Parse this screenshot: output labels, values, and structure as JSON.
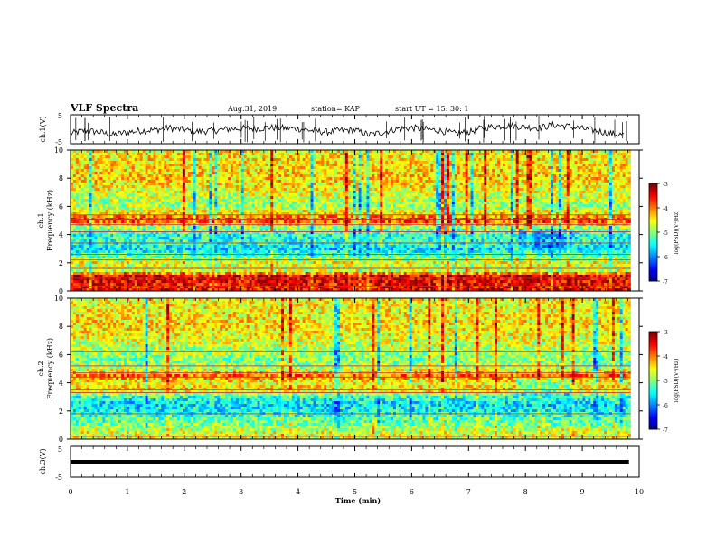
{
  "header": {
    "title": "VLF Spectra",
    "date": "Aug.31, 2019",
    "station": "station= KAP",
    "start": "start  UT =   15: 30: 1"
  },
  "panels": {
    "ch1": {
      "ylabel": "ch.1(V)",
      "ymin": -5,
      "ymax": 5,
      "ticks": [
        "5",
        "-5"
      ]
    },
    "spec1": {
      "ylabel1": "ch.1",
      "ylabel2": "Frequency  (kHz)",
      "ticks": [
        "0",
        "2",
        "4",
        "6",
        "8",
        "10"
      ]
    },
    "spec2": {
      "ylabel1": "ch.2",
      "ylabel2": "Frequency  (kHz)",
      "ticks": [
        "0",
        "2",
        "4",
        "6",
        "8",
        "10"
      ]
    },
    "ch3": {
      "ylabel": "ch.3(V)",
      "ticks": [
        "5",
        "-5"
      ]
    }
  },
  "xaxis": {
    "label": "Time  (min)",
    "ticks": [
      "0",
      "1",
      "2",
      "3",
      "4",
      "5",
      "6",
      "7",
      "8",
      "9",
      "10"
    ]
  },
  "colorbar": {
    "label": "log(PSD)(V²/Hz)",
    "ticks": [
      "-3",
      "-4",
      "-5",
      "-6",
      "-7"
    ]
  },
  "chart_data": [
    {
      "type": "line",
      "name": "ch1-waveform",
      "x_range": [
        0,
        10
      ],
      "ylim": [
        -5,
        5
      ],
      "x": [
        0,
        0.25,
        0.5,
        0.75,
        1,
        1.25,
        1.5,
        1.75,
        2,
        2.25,
        2.5,
        2.75,
        3,
        3.25,
        3.5,
        3.75,
        4,
        4.25,
        4.5,
        4.75,
        5,
        5.25,
        5.5,
        5.75,
        6,
        6.25,
        6.5,
        6.75,
        7,
        7.25,
        7.5,
        7.75,
        8,
        8.25,
        8.5,
        8.75,
        9,
        9.25,
        9.5,
        9.75
      ],
      "y": [
        -1.5,
        -0.5,
        -1.0,
        -2.0,
        -1.0,
        -0.5,
        -0.2,
        0.5,
        -0.3,
        -0.8,
        -0.5,
        0.0,
        0.3,
        0.2,
        0.6,
        0.4,
        0.2,
        -0.5,
        -1.0,
        -0.4,
        -0.3,
        -2.0,
        -1.0,
        0.2,
        0.5,
        0.0,
        -0.5,
        -1.5,
        -1.0,
        0.5,
        1.0,
        1.2,
        0.8,
        0.5,
        1.5,
        1.0,
        0.2,
        -0.5,
        -1.5,
        -2.0
      ]
    },
    {
      "type": "heatmap",
      "name": "ch1-spectrogram",
      "x_range": [
        0,
        10
      ],
      "ylim": [
        0,
        10
      ],
      "ylabel": "Frequency  (kHz)",
      "colorbar_range": [
        -7,
        -3
      ],
      "log_psd_profile_by_freq_khz": [
        {
          "f": 0.5,
          "v": -3.5
        },
        {
          "f": 1.0,
          "v": -3.3
        },
        {
          "f": 1.5,
          "v": -4.8
        },
        {
          "f": 2.0,
          "v": -4.5
        },
        {
          "f": 2.5,
          "v": -5.2
        },
        {
          "f": 3.0,
          "v": -5.6
        },
        {
          "f": 3.5,
          "v": -5.3
        },
        {
          "f": 4.0,
          "v": -5.4
        },
        {
          "f": 4.5,
          "v": -4.9
        },
        {
          "f": 5.0,
          "v": -3.6
        },
        {
          "f": 5.5,
          "v": -4.4
        },
        {
          "f": 6.0,
          "v": -4.9
        },
        {
          "f": 7.0,
          "v": -4.6
        },
        {
          "f": 8.0,
          "v": -4.3
        },
        {
          "f": 9.0,
          "v": -4.4
        },
        {
          "f": 10.0,
          "v": -4.5
        }
      ],
      "hum_lines_khz": [
        0.3,
        0.9,
        1.6,
        2.2,
        2.6,
        3.4,
        4.2,
        4.7,
        5.1,
        5.4
      ]
    },
    {
      "type": "heatmap",
      "name": "ch2-spectrogram",
      "x_range": [
        0,
        10
      ],
      "ylim": [
        0,
        10
      ],
      "ylabel": "Frequency  (kHz)",
      "colorbar_range": [
        -7,
        -3
      ],
      "log_psd_profile_by_freq_khz": [
        {
          "f": 0.5,
          "v": -4.6
        },
        {
          "f": 1.0,
          "v": -5.0
        },
        {
          "f": 1.5,
          "v": -5.2
        },
        {
          "f": 2.0,
          "v": -5.5
        },
        {
          "f": 2.5,
          "v": -5.6
        },
        {
          "f": 3.0,
          "v": -5.3
        },
        {
          "f": 3.5,
          "v": -4.3
        },
        {
          "f": 4.0,
          "v": -4.6
        },
        {
          "f": 4.5,
          "v": -3.9
        },
        {
          "f": 5.0,
          "v": -4.8
        },
        {
          "f": 5.5,
          "v": -5.0
        },
        {
          "f": 6.0,
          "v": -4.9
        },
        {
          "f": 7.0,
          "v": -4.6
        },
        {
          "f": 8.0,
          "v": -4.4
        },
        {
          "f": 9.0,
          "v": -4.5
        },
        {
          "f": 10.0,
          "v": -4.5
        }
      ],
      "hum_lines_khz": [
        0.2,
        1.8,
        3.3,
        3.5,
        4.4,
        4.7,
        5.2,
        6.2
      ]
    },
    {
      "type": "line",
      "name": "ch3-waveform",
      "x_range": [
        0,
        10
      ],
      "ylim": [
        -5,
        5
      ],
      "x": [
        0,
        9.82
      ],
      "y": [
        0,
        0
      ]
    }
  ],
  "colors": {
    "line": "#000000",
    "background": "#ffffff"
  }
}
